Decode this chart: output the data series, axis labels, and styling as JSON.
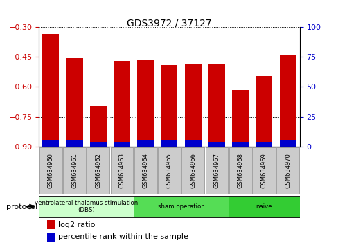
{
  "title": "GDS3972 / 37127",
  "samples": [
    "GSM634960",
    "GSM634961",
    "GSM634962",
    "GSM634963",
    "GSM634964",
    "GSM634965",
    "GSM634966",
    "GSM634967",
    "GSM634968",
    "GSM634969",
    "GSM634970"
  ],
  "log2_ratio": [
    -0.335,
    -0.455,
    -0.695,
    -0.47,
    -0.465,
    -0.49,
    -0.487,
    -0.487,
    -0.615,
    -0.545,
    -0.44
  ],
  "percentile_rank": [
    5,
    5,
    4,
    4,
    5,
    5,
    5,
    4,
    4,
    4,
    5
  ],
  "ylim_left": [
    -0.9,
    -0.3
  ],
  "ylim_right": [
    0,
    100
  ],
  "yticks_left": [
    -0.9,
    -0.75,
    -0.6,
    -0.45,
    -0.3
  ],
  "yticks_right": [
    0,
    25,
    50,
    75,
    100
  ],
  "bar_color_red": "#cc0000",
  "bar_color_blue": "#0000cc",
  "groups": [
    {
      "label": "ventrolateral thalamus stimulation\n(DBS)",
      "start": 0,
      "end": 3,
      "color": "#ccffcc"
    },
    {
      "label": "sham operation",
      "start": 4,
      "end": 7,
      "color": "#55dd55"
    },
    {
      "label": "naive",
      "start": 8,
      "end": 10,
      "color": "#33cc33"
    }
  ],
  "legend_red_label": "log2 ratio",
  "legend_blue_label": "percentile rank within the sample",
  "protocol_label": "protocol",
  "tick_label_color_left": "#cc0000",
  "tick_label_color_right": "#0000cc",
  "sample_box_color": "#cccccc",
  "sample_box_edge": "#888888",
  "title_fontsize": 10
}
